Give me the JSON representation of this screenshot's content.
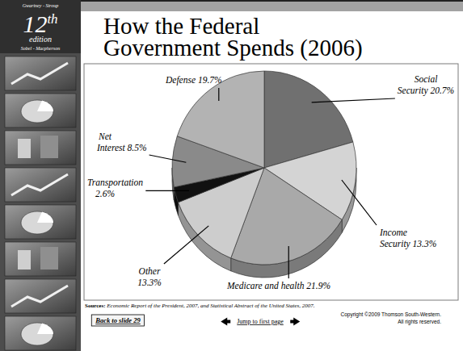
{
  "header": {
    "authors_top": "Gwartney - Stroup",
    "edition_number": "12",
    "edition_suffix": "th",
    "edition_word": "edition",
    "authors_bottom": "Sobel - Macpherson"
  },
  "chart_data": {
    "type": "pie",
    "title": "How the Federal Government Spends (2006)",
    "categories": [
      "Social Security",
      "Income Security",
      "Medicare and health",
      "Other",
      "Transportation",
      "Net Interest",
      "Defense"
    ],
    "values": [
      20.7,
      13.3,
      21.9,
      13.3,
      2.6,
      8.5,
      19.7
    ],
    "value_labels": [
      "20.7%",
      "13.3%",
      "21.9%",
      "13.3%",
      "2.6%",
      "8.5%",
      "19.7%"
    ],
    "colors": [
      "#707070",
      "#d4d4d4",
      "#a9a9a9",
      "#cdcdcd",
      "#111111",
      "#8a8a8a",
      "#b3b3b3"
    ],
    "data_labels": true
  },
  "footer": {
    "sources_label": "Sources:",
    "sources_text": "Economic Report of the President, 2007, and Statistical Abstract of the United States, 2007.",
    "back_button": "Back to slide 29",
    "jump_link": "Jump to first page",
    "copyright": [
      "Copyright ©2009  Thomson South-Western.",
      "All rights reserved."
    ]
  }
}
